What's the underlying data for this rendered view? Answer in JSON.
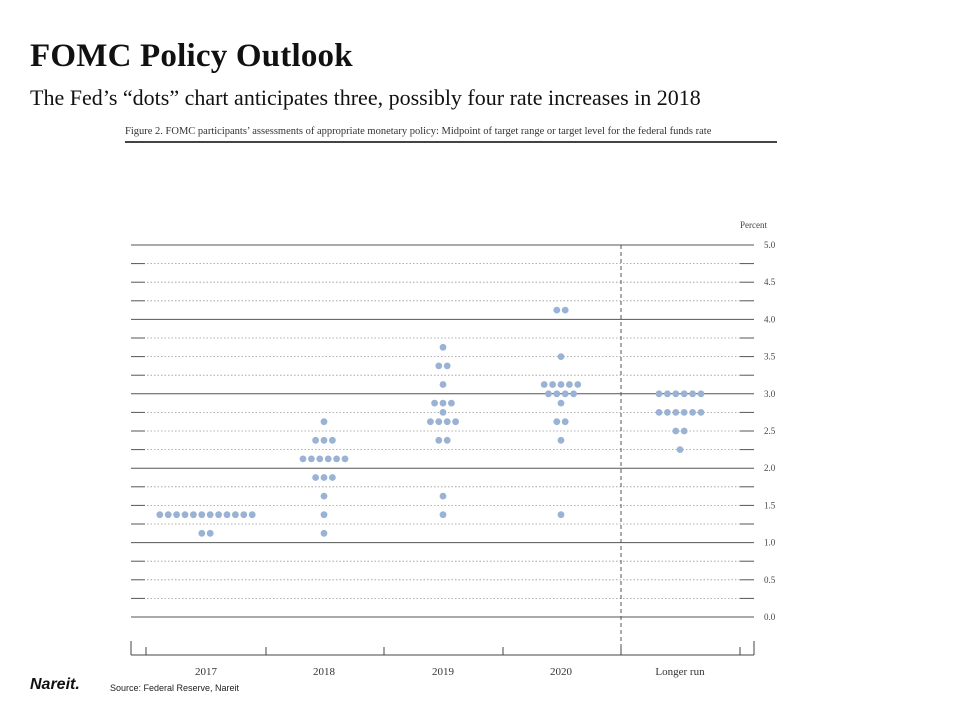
{
  "slide": {
    "title": "FOMC Policy Outlook",
    "subtitle": "The Fed’s “dots” chart anticipates three, possibly four rate increases in 2018"
  },
  "figure": {
    "caption": "Figure 2. FOMC participants’ assessments of appropriate monetary policy: Midpoint of target range or target level for the federal funds rate"
  },
  "footer": {
    "logo": "Nareit.",
    "source": "Source: Federal Reserve, Nareit"
  },
  "chart_data": {
    "type": "scatter",
    "title": "Figure 2. FOMC participants’ assessments of appropriate monetary policy: Midpoint of target range or target level for the federal funds rate",
    "ylabel": "Percent",
    "ylim": [
      0,
      5
    ],
    "yticks": [
      "0.0",
      "0.5",
      "1.0",
      "1.5",
      "2.0",
      "2.5",
      "3.0",
      "3.5",
      "4.0",
      "4.5",
      "5.0"
    ],
    "categories": [
      "2017",
      "2018",
      "2019",
      "2020",
      "Longer run"
    ],
    "dot_color": "#9ab3d4",
    "grid": true,
    "points": [
      {
        "category": "2017",
        "y": 1.375,
        "count": 12
      },
      {
        "category": "2017",
        "y": 1.125,
        "count": 2
      },
      {
        "category": "2018",
        "y": 2.625,
        "count": 1
      },
      {
        "category": "2018",
        "y": 2.375,
        "count": 3
      },
      {
        "category": "2018",
        "y": 2.125,
        "count": 6
      },
      {
        "category": "2018",
        "y": 1.875,
        "count": 3
      },
      {
        "category": "2018",
        "y": 1.625,
        "count": 1
      },
      {
        "category": "2018",
        "y": 1.375,
        "count": 1
      },
      {
        "category": "2018",
        "y": 1.125,
        "count": 1
      },
      {
        "category": "2019",
        "y": 3.625,
        "count": 1
      },
      {
        "category": "2019",
        "y": 3.375,
        "count": 2
      },
      {
        "category": "2019",
        "y": 3.125,
        "count": 1
      },
      {
        "category": "2019",
        "y": 2.875,
        "count": 3
      },
      {
        "category": "2019",
        "y": 2.75,
        "count": 1
      },
      {
        "category": "2019",
        "y": 2.625,
        "count": 4
      },
      {
        "category": "2019",
        "y": 2.375,
        "count": 2
      },
      {
        "category": "2019",
        "y": 1.625,
        "count": 1
      },
      {
        "category": "2019",
        "y": 1.375,
        "count": 1
      },
      {
        "category": "2020",
        "y": 4.125,
        "count": 2
      },
      {
        "category": "2020",
        "y": 3.5,
        "count": 1
      },
      {
        "category": "2020",
        "y": 3.125,
        "count": 5
      },
      {
        "category": "2020",
        "y": 3.0,
        "count": 4
      },
      {
        "category": "2020",
        "y": 2.875,
        "count": 1
      },
      {
        "category": "2020",
        "y": 2.625,
        "count": 2
      },
      {
        "category": "2020",
        "y": 2.375,
        "count": 1
      },
      {
        "category": "2020",
        "y": 1.375,
        "count": 1
      },
      {
        "category": "Longer run",
        "y": 3.0,
        "count": 6
      },
      {
        "category": "Longer run",
        "y": 2.75,
        "count": 6
      },
      {
        "category": "Longer run",
        "y": 2.5,
        "count": 2
      },
      {
        "category": "Longer run",
        "y": 2.25,
        "count": 1
      }
    ]
  }
}
